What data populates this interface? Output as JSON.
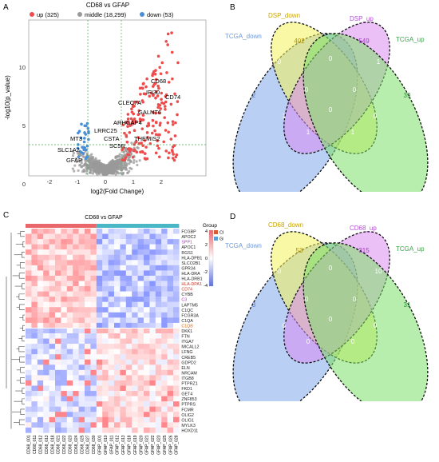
{
  "panels": {
    "A": {
      "letter": "A",
      "title": "CD68 vs GFAP",
      "legend": [
        {
          "label": "up (325)",
          "color": "#ee4c4c"
        },
        {
          "label": "middle (18,299)",
          "color": "#9a9a9a"
        },
        {
          "label": "down (53)",
          "color": "#4a8fd6"
        }
      ],
      "xlabel": "log2(Fold Change)",
      "ylabel": "-log10(p_value)",
      "xticks": [
        "-2",
        "-1",
        "0",
        "1",
        "2"
      ],
      "yticks": [
        "0",
        "5",
        "10"
      ]
    },
    "B": {
      "letter": "B",
      "sets": [
        "TCGA_down",
        "DSP_down",
        "DSP_up",
        "TCGA_up"
      ],
      "values": {
        "only_tcga_down": "2",
        "only_dsp_down": "402",
        "only_dsp_up": "549",
        "only_tcga_up": "39",
        "dd_du": "0",
        "td_dd": "0",
        "du_tu": "1",
        "td_tu": "0",
        "td_dd_du": "0",
        "dd_du_tu": "0",
        "td_dd_tu": "1",
        "td_du_tu": "1",
        "all4": "0",
        "td_du": "1",
        "dd_tu": "0"
      }
    },
    "C": {
      "letter": "C",
      "title": "CD68 vs GFAP",
      "legend_title": "Group",
      "legend": [
        {
          "label": "CD68",
          "color": "#d65a32"
        },
        {
          "label": "GFAP",
          "color": "#5a9fd6"
        }
      ],
      "scale": [
        "4",
        "2",
        "0",
        "-2",
        "-4"
      ],
      "genes": [
        "FCGBP",
        "APOC2",
        "SPP1",
        "APOC1",
        "RGS1",
        "HLA-DPB1",
        "SLCO2B1",
        "GPR34",
        "HLA-DRA",
        "HLA-DRB1",
        "HLA-DPA1",
        "CD74",
        "CYBB",
        "C3",
        "LAPTM5",
        "C1QC",
        "FCGR3A",
        "C1QA",
        "C1QB",
        "DKK1",
        "FTN",
        "ITGA7",
        "MICALL2",
        "LFNG",
        "CREB5",
        "GDPD2",
        "ELN",
        "NRCAM",
        "ITGB8",
        "PTPRZ1",
        "FKD1",
        "GET4",
        "ZNF853",
        "PTPRS",
        "FCMR",
        "OLIG2",
        "OLIG1",
        "MYLK3",
        "HOXD11"
      ],
      "highlight_genes": {
        "SPP1": "#b03cbf",
        "HLA-DPA1": "#c0392b",
        "CD74": "#c0392b",
        "C3": "#b03cbf",
        "C1QB": "#d2691e"
      },
      "samples": [
        "CD68_001",
        "CD68_011",
        "CD68_012",
        "CD68_013",
        "CD68_018",
        "CD68_021",
        "CD68_022",
        "CD68_023",
        "CD68_024",
        "CD68_025",
        "CD68_027",
        "CD68_030",
        "GFAP_001",
        "GFAP_010",
        "GFAP_011",
        "GFAP_012",
        "GFAP_013",
        "GFAP_018",
        "GFAP_019",
        "GFAP_020",
        "GFAP_021",
        "GFAP_022",
        "GFAP_023",
        "GFAP_025",
        "GFAP_026",
        "GFAP_028"
      ]
    },
    "D": {
      "letter": "D",
      "sets": [
        "TCGA_down",
        "CD68_down",
        "CD68_up",
        "TCGA_up"
      ],
      "values": {
        "only_tcga_down": "3",
        "only_dsp_down": "53",
        "only_dsp_up": "315",
        "only_tcga_up": "31",
        "dd_du": "0",
        "td_dd": "0",
        "du_tu": "10",
        "td_tu": "0",
        "td_dd_du": "0",
        "dd_du_tu": "0",
        "td_dd_tu": "0",
        "td_du_tu": "0",
        "all4": "0",
        "td_du": "0",
        "dd_tu": "0"
      }
    }
  },
  "colors": {
    "venn_blue": "#7fa8ea",
    "venn_yellow": "#f4f25a",
    "venn_purple": "#d88cf0",
    "venn_green": "#7ee06a",
    "heat_red": "#e9666b",
    "heat_blue": "#5a6fe0"
  }
}
